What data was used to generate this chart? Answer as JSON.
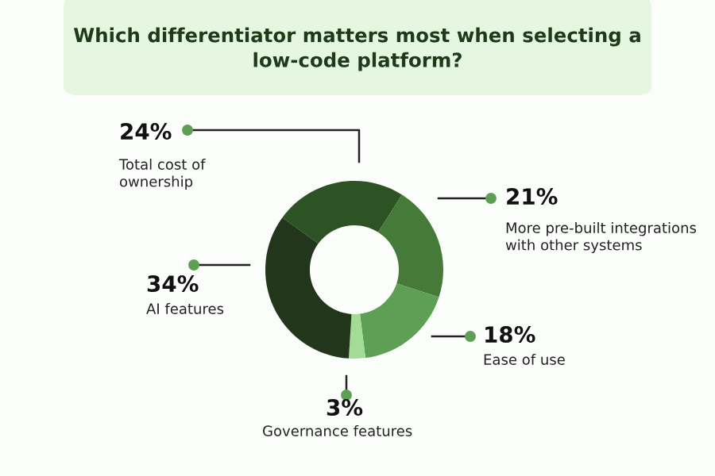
{
  "chart_data": {
    "type": "donut",
    "title": "Which differentiator matters most when selecting a low-code platform?",
    "categories": [
      "Total cost of ownership",
      "More pre-built integrations with other systems",
      "Ease of use",
      "Governance features",
      "AI features"
    ],
    "values": [
      24,
      21,
      18,
      3,
      34
    ],
    "value_labels": [
      "24%",
      "21%",
      "18%",
      "3%",
      "34%"
    ],
    "colors": [
      "#2d5223",
      "#467a38",
      "#5f9f55",
      "#a3dc96",
      "#21361a"
    ]
  }
}
